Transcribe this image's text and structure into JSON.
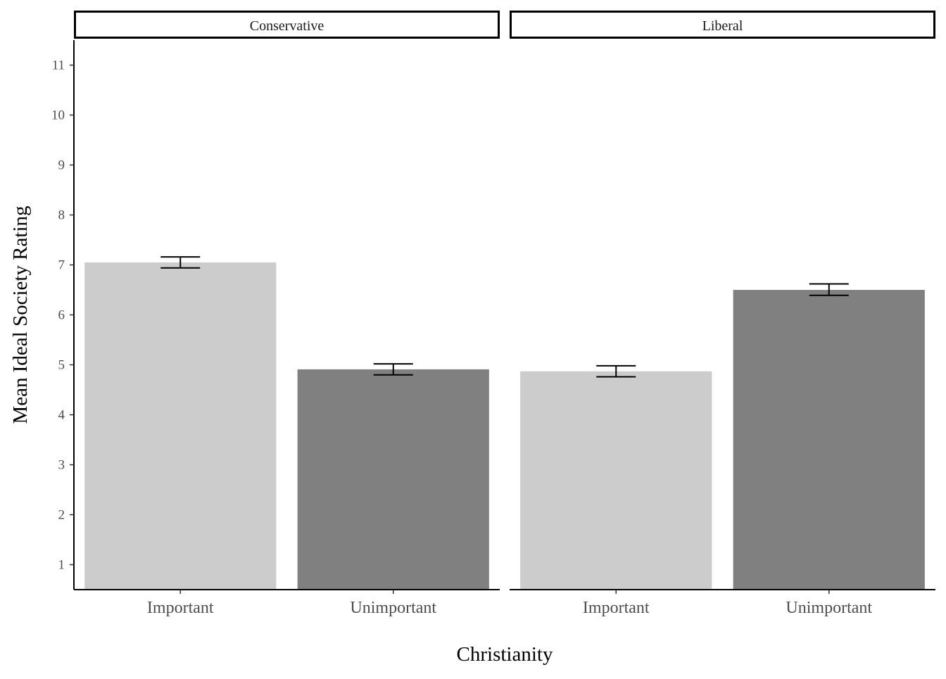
{
  "chart_data": {
    "type": "bar",
    "xlabel": "Christianity",
    "ylabel": "Mean Ideal Society Rating",
    "ylim": [
      0.5,
      11.5
    ],
    "yticks": [
      1,
      2,
      3,
      4,
      5,
      6,
      7,
      8,
      9,
      10,
      11
    ],
    "categories": [
      "Important",
      "Unimportant"
    ],
    "bar_colors": [
      "#cccccc",
      "#808080"
    ],
    "grid": false,
    "legend": "none",
    "panels": [
      {
        "label": "Conservative",
        "values": [
          7.05,
          4.91
        ],
        "error_low": [
          6.94,
          4.8
        ],
        "error_high": [
          7.16,
          5.02
        ]
      },
      {
        "label": "Liberal",
        "values": [
          4.87,
          6.5
        ],
        "error_low": [
          4.76,
          6.39
        ],
        "error_high": [
          4.98,
          6.62
        ]
      }
    ]
  }
}
